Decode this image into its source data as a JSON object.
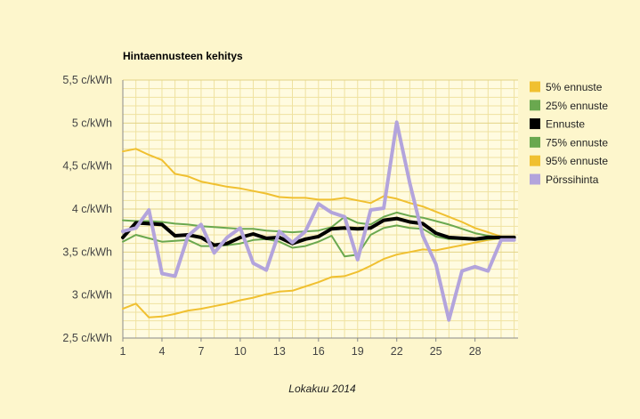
{
  "chart_data": {
    "type": "line",
    "title": "Hintaennusteen kehitys",
    "xlabel": "Lokakuu 2014",
    "ylabel": "",
    "x": [
      1,
      2,
      3,
      4,
      5,
      6,
      7,
      8,
      9,
      10,
      11,
      12,
      13,
      14,
      15,
      16,
      17,
      18,
      19,
      20,
      21,
      22,
      23,
      24,
      25,
      26,
      27,
      28,
      29,
      30,
      31
    ],
    "xticks": [
      1,
      4,
      7,
      10,
      13,
      16,
      19,
      22,
      25,
      28
    ],
    "xlim": [
      1,
      31.3
    ],
    "ylim": [
      2.5,
      5.5
    ],
    "yticks": [
      {
        "value": 2.5,
        "label": "2,5 c/kWh"
      },
      {
        "value": 3.0,
        "label": "3 c/kWh"
      },
      {
        "value": 3.5,
        "label": "3,5 c/kWh"
      },
      {
        "value": 4.0,
        "label": "4 c/kWh"
      },
      {
        "value": 4.5,
        "label": "4,5 c/kWh"
      },
      {
        "value": 5.0,
        "label": "5 c/kWh"
      },
      {
        "value": 5.5,
        "label": "5,5 c/kWh"
      }
    ],
    "grid": true,
    "legend_position": "right",
    "series": [
      {
        "name": "5% ennuste",
        "color": "#f0c030",
        "width": 2,
        "values": [
          2.84,
          2.9,
          2.74,
          2.75,
          2.78,
          2.82,
          2.84,
          2.87,
          2.9,
          2.94,
          2.97,
          3.01,
          3.04,
          3.05,
          3.1,
          3.15,
          3.21,
          3.22,
          3.27,
          3.34,
          3.42,
          3.47,
          3.5,
          3.53,
          3.52,
          3.55,
          3.58,
          3.61,
          3.64,
          3.66,
          3.66
        ]
      },
      {
        "name": "95% ennuste",
        "color": "#f0c030",
        "width": 2,
        "values": [
          4.67,
          4.7,
          4.63,
          4.57,
          4.41,
          4.38,
          4.32,
          4.29,
          4.26,
          4.24,
          4.21,
          4.18,
          4.14,
          4.13,
          4.13,
          4.11,
          4.11,
          4.13,
          4.1,
          4.07,
          4.15,
          4.12,
          4.07,
          4.03,
          3.97,
          3.91,
          3.85,
          3.78,
          3.73,
          3.68,
          3.67
        ]
      },
      {
        "name": "25% ennuste",
        "color": "#6aa84f",
        "width": 2,
        "values": [
          3.62,
          3.7,
          3.66,
          3.62,
          3.63,
          3.64,
          3.57,
          3.57,
          3.58,
          3.6,
          3.64,
          3.65,
          3.62,
          3.55,
          3.57,
          3.62,
          3.69,
          3.45,
          3.47,
          3.7,
          3.78,
          3.81,
          3.78,
          3.77,
          3.68,
          3.65,
          3.65,
          3.64,
          3.65,
          3.66,
          3.66
        ]
      },
      {
        "name": "75% ennuste",
        "color": "#6aa84f",
        "width": 2,
        "values": [
          3.87,
          3.86,
          3.86,
          3.85,
          3.83,
          3.82,
          3.8,
          3.79,
          3.78,
          3.77,
          3.77,
          3.75,
          3.74,
          3.73,
          3.74,
          3.75,
          3.79,
          3.91,
          3.84,
          3.82,
          3.91,
          3.96,
          3.92,
          3.9,
          3.86,
          3.82,
          3.77,
          3.72,
          3.69,
          3.67,
          3.67
        ]
      },
      {
        "name": "Ennuste",
        "color": "#000000",
        "width": 4,
        "values": [
          3.67,
          3.84,
          3.83,
          3.82,
          3.69,
          3.7,
          3.67,
          3.58,
          3.6,
          3.67,
          3.71,
          3.66,
          3.67,
          3.6,
          3.65,
          3.68,
          3.77,
          3.78,
          3.77,
          3.78,
          3.87,
          3.89,
          3.85,
          3.83,
          3.72,
          3.67,
          3.66,
          3.65,
          3.67,
          3.67,
          3.67
        ]
      },
      {
        "name": "Pörssihinta",
        "color": "#b3a4dc",
        "width": 4,
        "values": [
          3.74,
          3.78,
          3.99,
          3.25,
          3.22,
          3.69,
          3.82,
          3.49,
          3.67,
          3.78,
          3.37,
          3.29,
          3.74,
          3.61,
          3.74,
          4.06,
          3.96,
          3.91,
          3.41,
          3.99,
          4.01,
          5.01,
          4.3,
          3.69,
          3.36,
          2.71,
          3.28,
          3.33,
          3.28,
          3.64,
          3.64
        ]
      }
    ],
    "legend": [
      {
        "label": "5% ennuste",
        "color": "#f0c030"
      },
      {
        "label": "25% ennuste",
        "color": "#6aa84f"
      },
      {
        "label": "Ennuste",
        "color": "#000000"
      },
      {
        "label": "75% ennuste",
        "color": "#6aa84f"
      },
      {
        "label": "95% ennuste",
        "color": "#f0c030"
      },
      {
        "label": "Pörssihinta",
        "color": "#b3a4dc"
      }
    ]
  }
}
